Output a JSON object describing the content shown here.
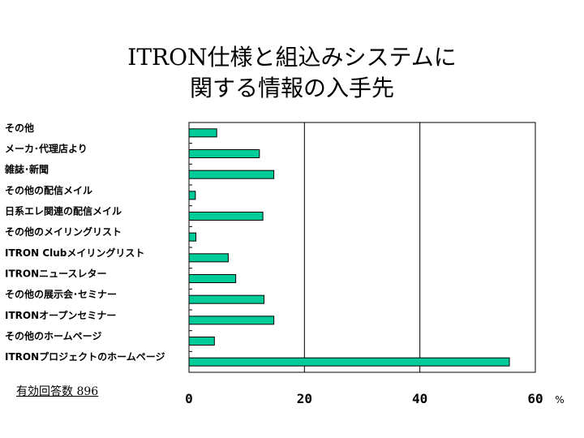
{
  "title_lines": [
    "ITRON仕様と組込みシステムに",
    "関する情報の入手先"
  ],
  "response_note": "有効回答数 896",
  "chart_data": {
    "type": "bar",
    "orientation": "horizontal",
    "title": "ITRON仕様と組込みシステムに関する情報の入手先",
    "categories": [
      "その他",
      "メーカ･代理店より",
      "雑誌･新聞",
      "その他の配信メイル",
      "日系エレ関連の配信メイル",
      "その他のメイリングリスト",
      "ITRON Clubメイリングリスト",
      "ITRONニュースレター",
      "その他の展示会･セミナー",
      "ITRONオープンセミナー",
      "その他のホームページ",
      "ITRONプロジェクトのホームページ"
    ],
    "values": [
      4.8,
      12.2,
      14.7,
      1.1,
      12.8,
      1.2,
      6.8,
      8.1,
      13.0,
      14.7,
      4.4,
      55.5
    ],
    "xlim": [
      0,
      60
    ],
    "xticks": [
      "0",
      "20",
      "40",
      "60"
    ],
    "unit": "%",
    "grid": "vertical",
    "bar_color": "#00cc99"
  }
}
